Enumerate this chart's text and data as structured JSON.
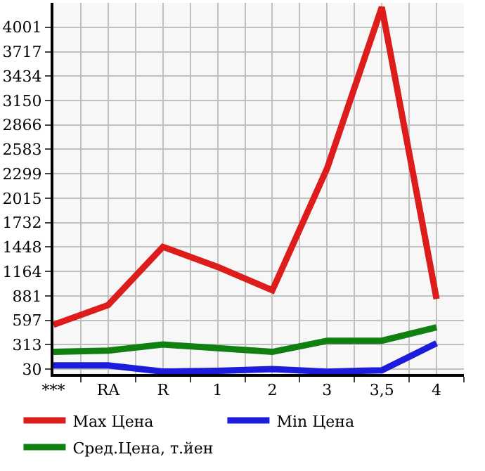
{
  "chart_data": {
    "type": "line",
    "categories": [
      "***",
      "RA",
      "R",
      "1",
      "2",
      "3",
      "3,5",
      "4"
    ],
    "series": [
      {
        "name": "Max Цена",
        "color": "#dd1c1c",
        "values": [
          545,
          774,
          1450,
          1217,
          945,
          2361,
          4234,
          845
        ]
      },
      {
        "name": "Min Цена",
        "color": "#1c1cdd",
        "values": [
          73,
          73,
          1,
          9,
          30,
          0,
          16,
          330
        ]
      },
      {
        "name": "Сред.Цена, т.йен",
        "color": "#108010",
        "values": [
          230,
          245,
          316,
          273,
          230,
          359,
          359,
          516
        ]
      }
    ],
    "ylim": [
      -27,
      4285
    ],
    "yticks": [
      30,
      313,
      597,
      881,
      1164,
      1448,
      1732,
      2015,
      2299,
      2583,
      2866,
      3150,
      3434,
      3717,
      4001
    ],
    "grid": true,
    "legend": "bottom",
    "marker": "none",
    "line_style": "solid"
  }
}
